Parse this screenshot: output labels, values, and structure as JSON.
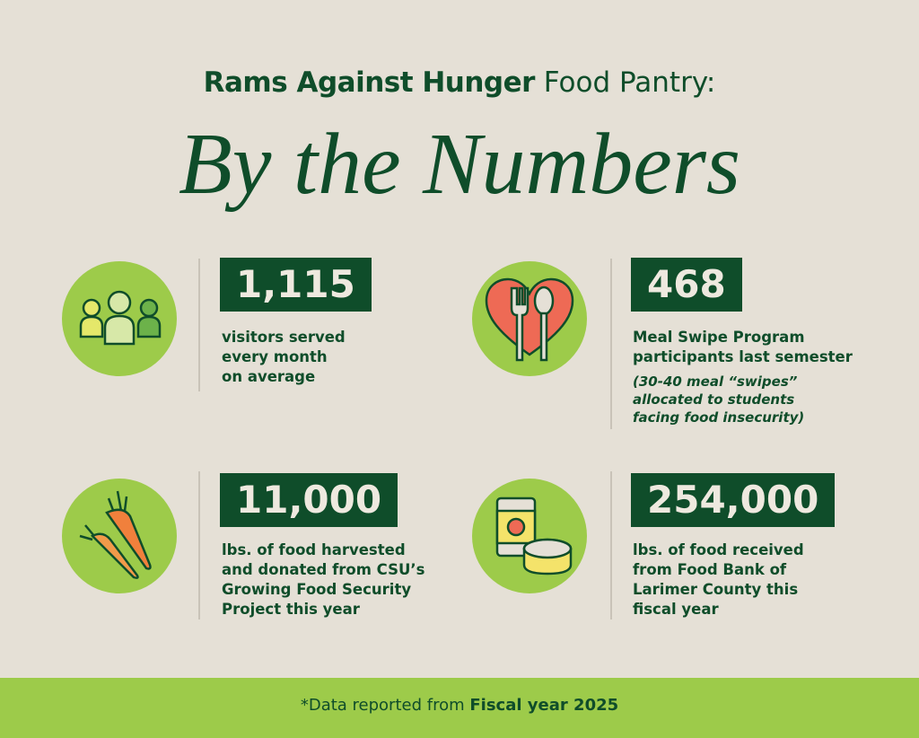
{
  "header": {
    "title_bold": "Rams Against Hunger",
    "title_light": "Food Pantry:",
    "subtitle": "By the Numbers"
  },
  "stats": [
    {
      "number": "1,115",
      "description": [
        "visitors served",
        "every month",
        "on average"
      ]
    },
    {
      "number": "468",
      "description": [
        "Meal Swipe Program",
        "participants last semester"
      ],
      "note": [
        "(30-40 meal “swipes”",
        "allocated to students",
        "facing food insecurity)"
      ]
    },
    {
      "number": "11,000",
      "description": [
        "lbs. of food harvested",
        "and donated from CSU’s",
        "Growing Food Security",
        "Project this year"
      ]
    },
    {
      "number": "254,000",
      "description": [
        "lbs. of food received",
        "from Food Bank of",
        "Larimer County this",
        "fiscal year"
      ]
    }
  ],
  "footer": {
    "text": "*Data reported from",
    "bold": "Fiscal year 2025"
  }
}
